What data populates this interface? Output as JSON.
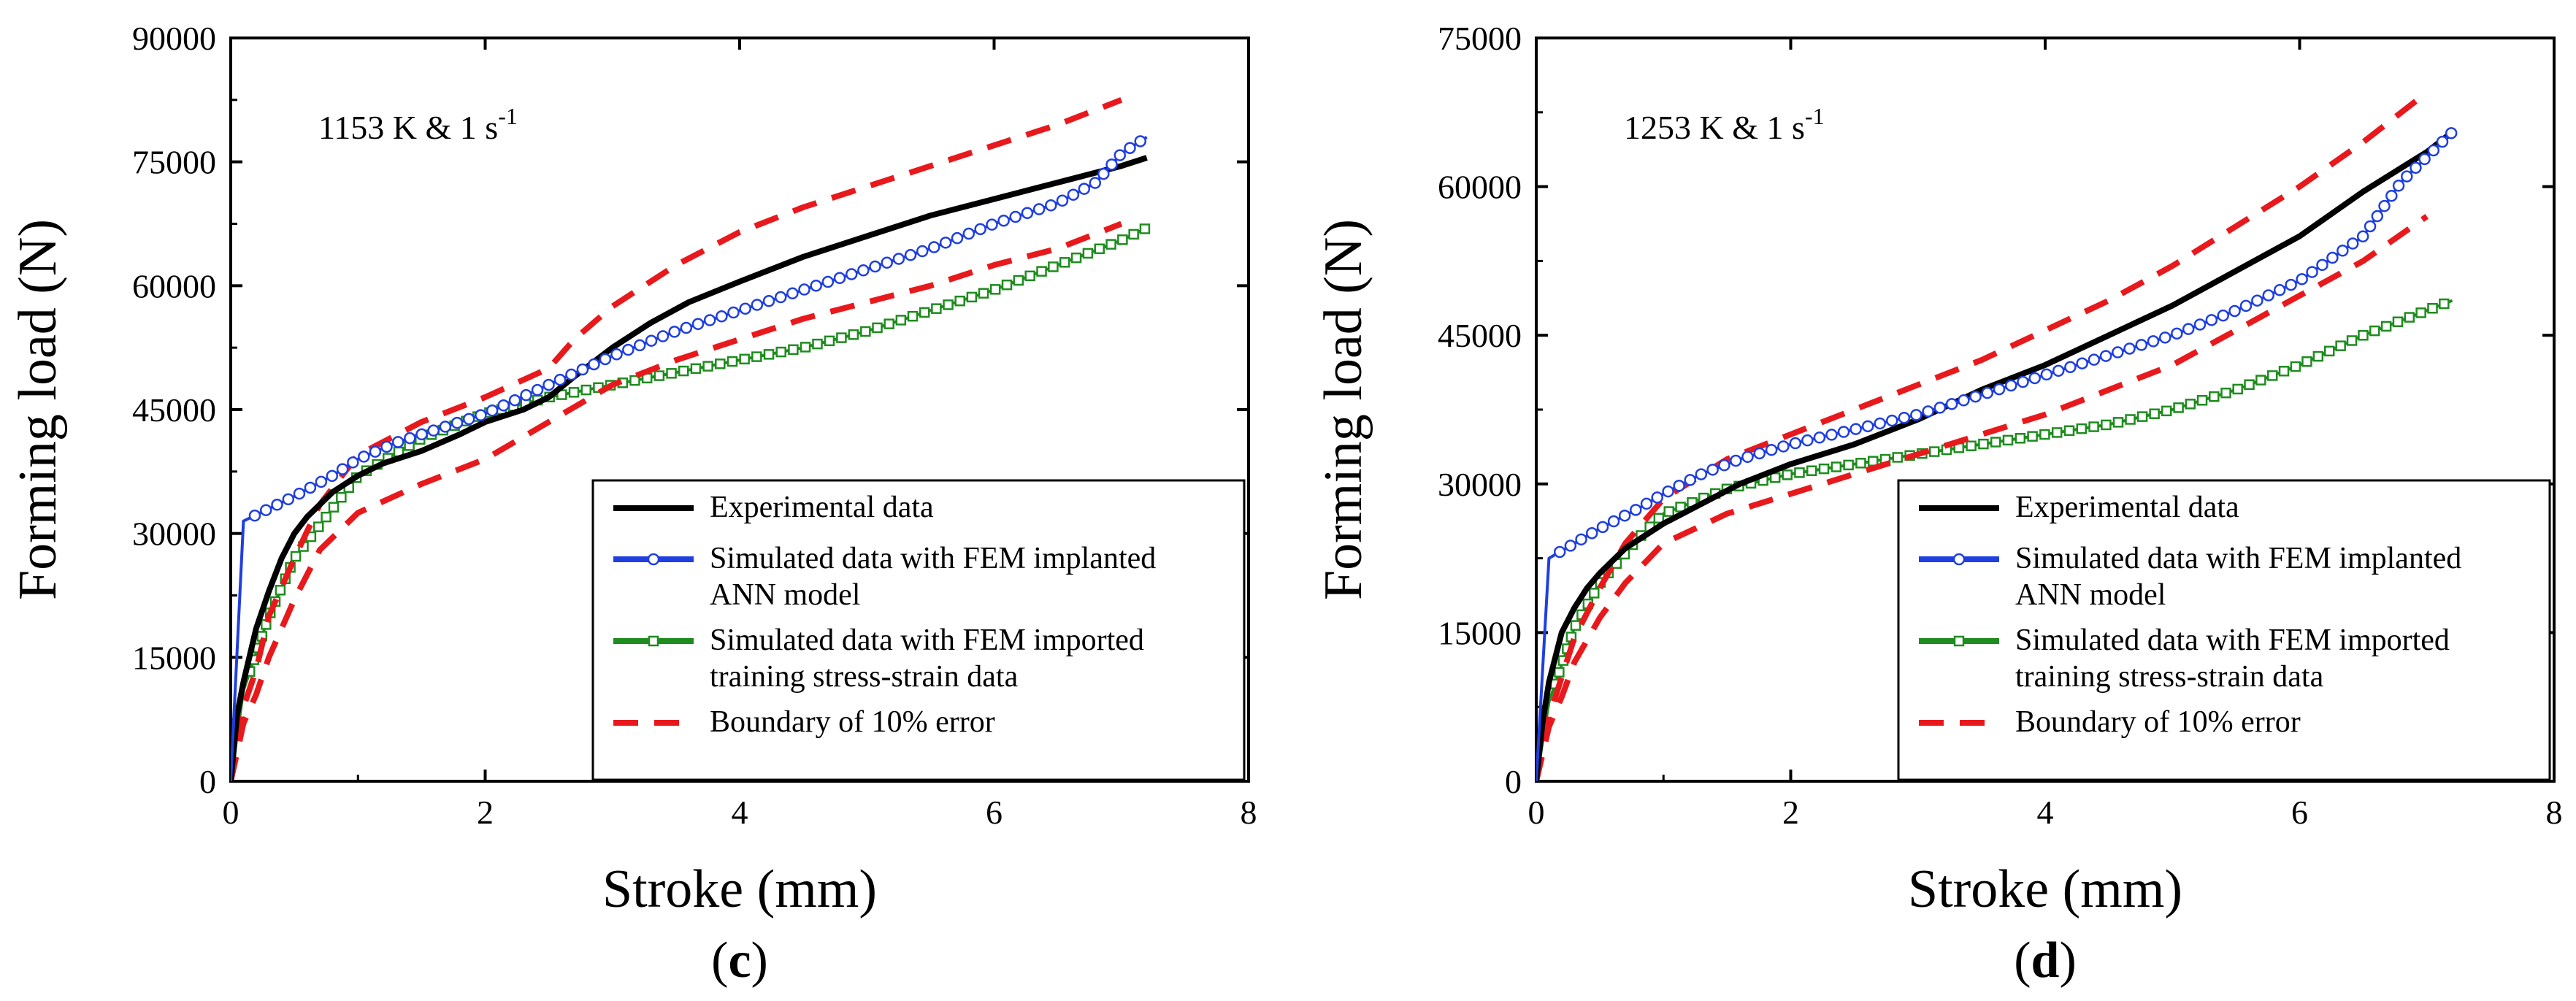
{
  "chart_data": [
    {
      "type": "line",
      "panel_label": "c",
      "condition_text": "1153 K & 1 s",
      "condition_exponent": "-1",
      "xlabel": "Stroke (mm)",
      "ylabel": "Forming load (N)",
      "xlim": [
        0,
        8
      ],
      "ylim": [
        0,
        90000
      ],
      "xticks": [
        0,
        2,
        4,
        6,
        8
      ],
      "yticks": [
        0,
        15000,
        30000,
        45000,
        60000,
        75000,
        90000
      ],
      "grid": false,
      "legend_position": "bottom-right",
      "series": [
        {
          "name": "Experimental data",
          "color": "#000000",
          "style": "solid",
          "marker": "none",
          "x": [
            0,
            0.05,
            0.1,
            0.2,
            0.3,
            0.4,
            0.5,
            0.6,
            0.8,
            1.0,
            1.2,
            1.5,
            1.8,
            2.0,
            2.3,
            2.5,
            2.7,
            3.0,
            3.3,
            3.6,
            4.0,
            4.5,
            5.0,
            5.5,
            6.0,
            6.5,
            7.0,
            7.2
          ],
          "y": [
            0,
            8000,
            12000,
            18500,
            23000,
            27000,
            30000,
            32000,
            35000,
            37000,
            38500,
            40000,
            42000,
            43500,
            45000,
            46500,
            49000,
            52500,
            55500,
            58000,
            60500,
            63500,
            66000,
            68500,
            70500,
            72500,
            74500,
            75500
          ]
        },
        {
          "name": "Simulated data with FEM implanted ANN model",
          "color": "#1f3fe0",
          "style": "solid",
          "marker": "circle",
          "x": [
            0,
            0.1,
            0.3,
            0.5,
            0.8,
            1.0,
            1.3,
            1.6,
            2.0,
            2.5,
            3.0,
            3.5,
            4.0,
            4.5,
            5.0,
            5.5,
            6.0,
            6.5,
            6.8,
            7.0,
            7.2
          ],
          "y": [
            0,
            31500,
            33000,
            34500,
            37000,
            39000,
            41000,
            42500,
            44500,
            48000,
            51500,
            54500,
            57000,
            59500,
            62000,
            64500,
            67500,
            70000,
            72500,
            76000,
            78000
          ]
        },
        {
          "name": "Simulated data with FEM imported training stress-strain data",
          "color": "#1e8c1e",
          "style": "solid",
          "marker": "square",
          "x": [
            0,
            0.1,
            0.3,
            0.5,
            0.8,
            1.0,
            1.5,
            2.0,
            2.5,
            3.0,
            3.5,
            4.0,
            4.5,
            5.0,
            5.5,
            6.0,
            6.5,
            7.0,
            7.2
          ],
          "y": [
            0,
            11000,
            20000,
            27000,
            33000,
            37000,
            41500,
            44500,
            46500,
            48000,
            49500,
            51000,
            52500,
            54500,
            57000,
            59500,
            62500,
            65500,
            67000
          ]
        },
        {
          "name": "Boundary of 10% error",
          "color": "#e8191c",
          "style": "dashed",
          "marker": "none",
          "x": [
            0,
            0.1,
            0.2,
            0.3,
            0.5,
            0.7,
            1.0,
            1.5,
            2.0,
            2.5,
            2.7,
            3.0,
            3.5,
            4.0,
            4.5,
            5.0,
            5.5,
            6.0,
            6.5,
            7.0
          ],
          "y": [
            0,
            9000,
            13500,
            20000,
            27000,
            33500,
            39500,
            43500,
            46500,
            50000,
            53500,
            57500,
            62500,
            66500,
            69500,
            72000,
            74500,
            77000,
            79500,
            82500
          ]
        },
        {
          "name": "Boundary of 10% error (lower)",
          "color": "#e8191c",
          "style": "dashed",
          "marker": "none",
          "show_in_legend": false,
          "x": [
            0,
            0.1,
            0.2,
            0.3,
            0.5,
            0.7,
            1.0,
            1.5,
            2.0,
            2.5,
            3.0,
            3.5,
            4.0,
            4.5,
            5.0,
            5.5,
            6.0,
            6.5,
            7.0
          ],
          "y": [
            0,
            7000,
            10500,
            15000,
            22000,
            28000,
            32500,
            36000,
            39000,
            43500,
            48000,
            51000,
            53500,
            56000,
            58000,
            60000,
            62500,
            64500,
            67500
          ]
        }
      ]
    },
    {
      "type": "line",
      "panel_label": "d",
      "condition_text": "1253 K & 1 s",
      "condition_exponent": "-1",
      "xlabel": "Stroke (mm)",
      "ylabel": "Forming load (N)",
      "xlim": [
        0,
        8
      ],
      "ylim": [
        0,
        75000
      ],
      "xticks": [
        0,
        2,
        4,
        6,
        8
      ],
      "yticks": [
        0,
        15000,
        30000,
        45000,
        60000,
        75000
      ],
      "grid": false,
      "legend_position": "bottom-right",
      "series": [
        {
          "name": "Experimental data",
          "color": "#000000",
          "style": "solid",
          "marker": "none",
          "x": [
            0,
            0.05,
            0.1,
            0.2,
            0.3,
            0.4,
            0.5,
            0.7,
            1.0,
            1.3,
            1.6,
            2.0,
            2.5,
            3.0,
            3.5,
            4.0,
            4.5,
            5.0,
            5.5,
            6.0,
            6.5,
            7.0,
            7.2
          ],
          "y": [
            0,
            6000,
            10000,
            15000,
            17500,
            19500,
            21000,
            23500,
            26000,
            28000,
            30000,
            32000,
            34000,
            36500,
            39500,
            42000,
            45000,
            48000,
            51500,
            55000,
            59500,
            63500,
            65500
          ]
        },
        {
          "name": "Simulated data with FEM implanted ANN model",
          "color": "#1f3fe0",
          "style": "solid",
          "marker": "circle",
          "x": [
            0,
            0.1,
            0.3,
            0.5,
            0.8,
            1.0,
            1.3,
            1.6,
            2.0,
            2.5,
            3.0,
            3.5,
            4.0,
            4.5,
            5.0,
            5.5,
            6.0,
            6.5,
            6.8,
            7.0,
            7.2
          ],
          "y": [
            0,
            22500,
            24000,
            25500,
            27500,
            29000,
            31000,
            32500,
            34000,
            35500,
            37000,
            39000,
            41000,
            43000,
            45000,
            47500,
            50500,
            55000,
            60500,
            63000,
            65500
          ]
        },
        {
          "name": "Simulated data with FEM imported training stress-strain data",
          "color": "#1e8c1e",
          "style": "solid",
          "marker": "square",
          "x": [
            0,
            0.1,
            0.3,
            0.5,
            0.8,
            1.0,
            1.5,
            2.0,
            2.5,
            3.0,
            3.5,
            4.0,
            4.5,
            5.0,
            5.5,
            6.0,
            6.5,
            7.0,
            7.2
          ],
          "y": [
            0,
            8000,
            15500,
            20000,
            24500,
            27000,
            29500,
            31000,
            32000,
            33000,
            34000,
            35000,
            36000,
            37500,
            39500,
            42000,
            45000,
            47500,
            48500
          ]
        },
        {
          "name": "Boundary of 10% error",
          "color": "#e8191c",
          "style": "dashed",
          "marker": "none",
          "x": [
            0,
            0.1,
            0.2,
            0.3,
            0.5,
            0.7,
            1.0,
            1.5,
            2.0,
            2.5,
            3.0,
            3.5,
            4.0,
            4.5,
            5.0,
            5.5,
            6.0,
            6.5,
            7.0
          ],
          "y": [
            0,
            6500,
            10500,
            14500,
            19500,
            24000,
            28500,
            32500,
            35000,
            37500,
            40000,
            42500,
            45500,
            48500,
            52000,
            56000,
            60000,
            64500,
            69500
          ]
        },
        {
          "name": "Boundary of 10% error (lower)",
          "color": "#e8191c",
          "style": "dashed",
          "marker": "none",
          "show_in_legend": false,
          "x": [
            0,
            0.1,
            0.2,
            0.3,
            0.5,
            0.7,
            1.0,
            1.5,
            2.0,
            2.5,
            3.0,
            3.5,
            4.0,
            4.5,
            5.0,
            5.5,
            6.0,
            6.5,
            7.0
          ],
          "y": [
            0,
            5500,
            8500,
            12000,
            16500,
            20000,
            24000,
            27000,
            29000,
            31000,
            33000,
            35000,
            37000,
            39500,
            42000,
            45500,
            49000,
            52500,
            57000
          ]
        }
      ]
    }
  ],
  "legend": {
    "entries": [
      {
        "key": "experimental",
        "lines": [
          "Experimental data"
        ]
      },
      {
        "key": "ann",
        "lines": [
          "Simulated data with FEM implanted",
          "ANN model"
        ]
      },
      {
        "key": "imported",
        "lines": [
          "Simulated data with FEM imported",
          "training stress-strain data"
        ]
      },
      {
        "key": "boundary",
        "lines": [
          "Boundary of 10% error"
        ]
      }
    ]
  }
}
